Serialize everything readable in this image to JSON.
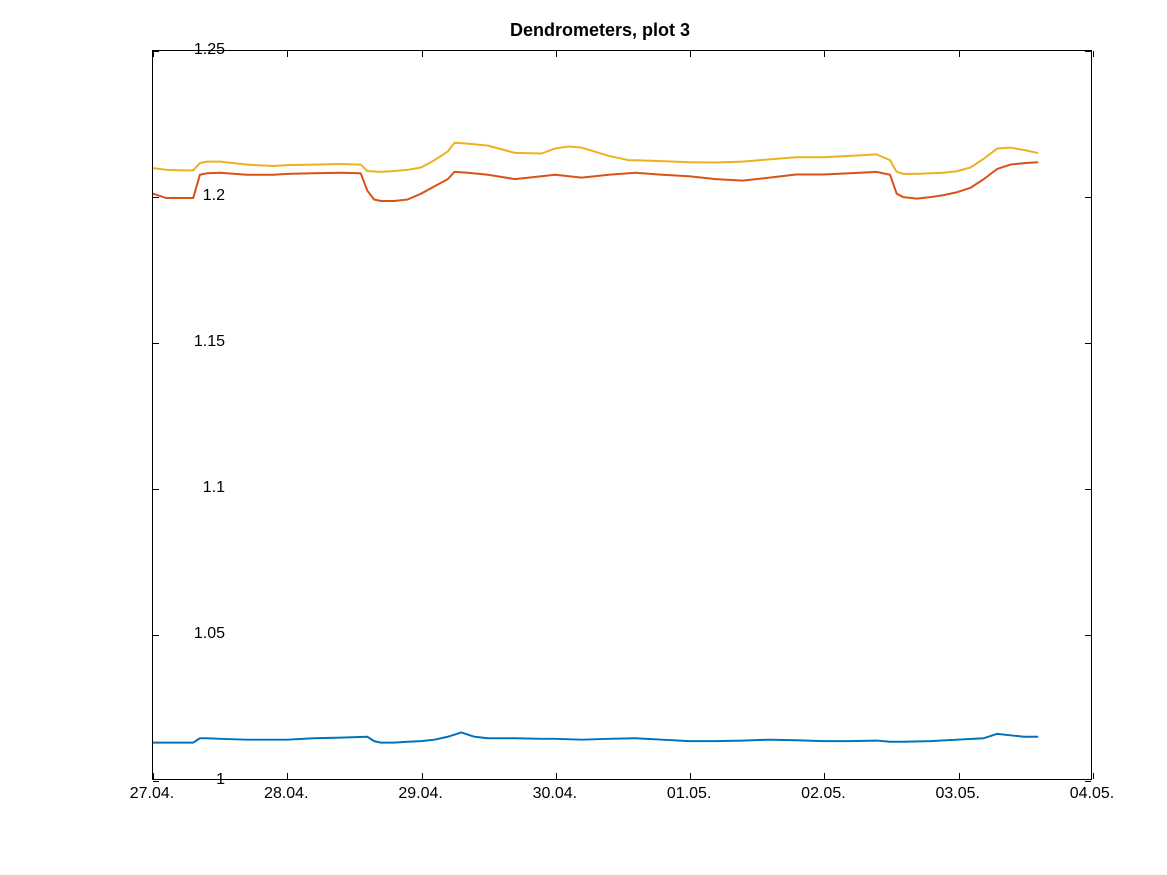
{
  "chart": {
    "type": "line",
    "title": "Dendrometers, plot 3",
    "title_fontsize": 18,
    "title_fontweight": "bold",
    "background_color": "#ffffff",
    "axis_color": "#000000",
    "tick_fontsize": 16,
    "tick_color": "#000000",
    "grid": false,
    "ylim": [
      1.0,
      1.25
    ],
    "yticks": [
      1.0,
      1.05,
      1.1,
      1.15,
      1.2,
      1.25
    ],
    "ytick_labels": [
      "1",
      "1.05",
      "1.1",
      "1.15",
      "1.2",
      "1.25"
    ],
    "xlim": [
      0,
      7
    ],
    "xticks": [
      0,
      1,
      2,
      3,
      4,
      5,
      6,
      7
    ],
    "xtick_labels": [
      "27.04.",
      "28.04.",
      "29.04.",
      "30.04.",
      "01.05.",
      "02.05.",
      "03.05.",
      "04.05."
    ],
    "line_width": 2,
    "series": [
      {
        "name": "series-blue",
        "color": "#0072bd",
        "x": [
          0,
          0.1,
          0.2,
          0.3,
          0.35,
          0.4,
          0.5,
          0.7,
          0.9,
          1.0,
          1.2,
          1.4,
          1.6,
          1.65,
          1.7,
          1.8,
          1.9,
          2.0,
          2.1,
          2.2,
          2.3,
          2.4,
          2.5,
          2.7,
          2.9,
          3.0,
          3.2,
          3.4,
          3.6,
          3.8,
          4.0,
          4.2,
          4.4,
          4.6,
          4.8,
          5.0,
          5.2,
          5.4,
          5.5,
          5.6,
          5.8,
          6.0,
          6.2,
          6.3,
          6.4,
          6.5,
          6.6
        ],
        "y": [
          1.0125,
          1.0125,
          1.0125,
          1.0125,
          1.014,
          1.014,
          1.0138,
          1.0135,
          1.0135,
          1.0135,
          1.014,
          1.0142,
          1.0145,
          1.013,
          1.0125,
          1.0125,
          1.0128,
          1.013,
          1.0135,
          1.0145,
          1.016,
          1.0145,
          1.014,
          1.014,
          1.0138,
          1.0138,
          1.0135,
          1.0138,
          1.014,
          1.0135,
          1.013,
          1.013,
          1.0132,
          1.0135,
          1.0133,
          1.013,
          1.013,
          1.0132,
          1.0128,
          1.0128,
          1.013,
          1.0135,
          1.014,
          1.0155,
          1.015,
          1.0145,
          1.0145
        ]
      },
      {
        "name": "series-orange",
        "color": "#d95319",
        "x": [
          0,
          0.1,
          0.2,
          0.3,
          0.35,
          0.4,
          0.5,
          0.7,
          0.9,
          1.0,
          1.2,
          1.4,
          1.55,
          1.6,
          1.65,
          1.7,
          1.8,
          1.9,
          2.0,
          2.1,
          2.2,
          2.25,
          2.35,
          2.5,
          2.7,
          2.9,
          3.0,
          3.2,
          3.4,
          3.6,
          3.8,
          4.0,
          4.2,
          4.4,
          4.6,
          4.8,
          5.0,
          5.2,
          5.4,
          5.5,
          5.55,
          5.6,
          5.7,
          5.8,
          5.9,
          6.0,
          6.1,
          6.2,
          6.3,
          6.4,
          6.5,
          6.6
        ],
        "y": [
          1.201,
          1.1995,
          1.1995,
          1.1995,
          1.2075,
          1.208,
          1.2082,
          1.2075,
          1.2075,
          1.2078,
          1.208,
          1.2082,
          1.208,
          1.202,
          1.199,
          1.1985,
          1.1985,
          1.199,
          1.201,
          1.2035,
          1.206,
          1.2085,
          1.2082,
          1.2075,
          1.206,
          1.207,
          1.2075,
          1.2065,
          1.2075,
          1.2082,
          1.2075,
          1.207,
          1.206,
          1.2055,
          1.2065,
          1.2076,
          1.2076,
          1.208,
          1.2085,
          1.2075,
          1.201,
          1.1998,
          1.1993,
          1.1998,
          1.2005,
          1.2015,
          1.203,
          1.206,
          1.2095,
          1.211,
          1.2115,
          1.2118
        ]
      },
      {
        "name": "series-yellow",
        "color": "#edb120",
        "x": [
          0,
          0.1,
          0.2,
          0.3,
          0.35,
          0.4,
          0.5,
          0.7,
          0.9,
          1.0,
          1.2,
          1.4,
          1.55,
          1.6,
          1.7,
          1.8,
          1.9,
          2.0,
          2.1,
          2.2,
          2.25,
          2.35,
          2.5,
          2.7,
          2.9,
          3.0,
          3.1,
          3.2,
          3.4,
          3.55,
          3.6,
          3.8,
          4.0,
          4.2,
          4.4,
          4.6,
          4.8,
          5.0,
          5.2,
          5.4,
          5.5,
          5.55,
          5.6,
          5.7,
          5.8,
          5.9,
          6.0,
          6.1,
          6.2,
          6.3,
          6.4,
          6.5,
          6.6
        ],
        "y": [
          1.2098,
          1.2092,
          1.209,
          1.209,
          1.2115,
          1.212,
          1.212,
          1.211,
          1.2105,
          1.2108,
          1.211,
          1.2112,
          1.211,
          1.2088,
          1.2085,
          1.2088,
          1.2092,
          1.21,
          1.2125,
          1.2155,
          1.2185,
          1.2182,
          1.2175,
          1.215,
          1.2148,
          1.2165,
          1.2172,
          1.2168,
          1.214,
          1.2125,
          1.2125,
          1.2122,
          1.2118,
          1.2117,
          1.212,
          1.2128,
          1.2135,
          1.2135,
          1.214,
          1.2145,
          1.2125,
          1.2085,
          1.2078,
          1.2078,
          1.208,
          1.2082,
          1.2087,
          1.21,
          1.213,
          1.2165,
          1.2168,
          1.216,
          1.215
        ]
      }
    ]
  }
}
